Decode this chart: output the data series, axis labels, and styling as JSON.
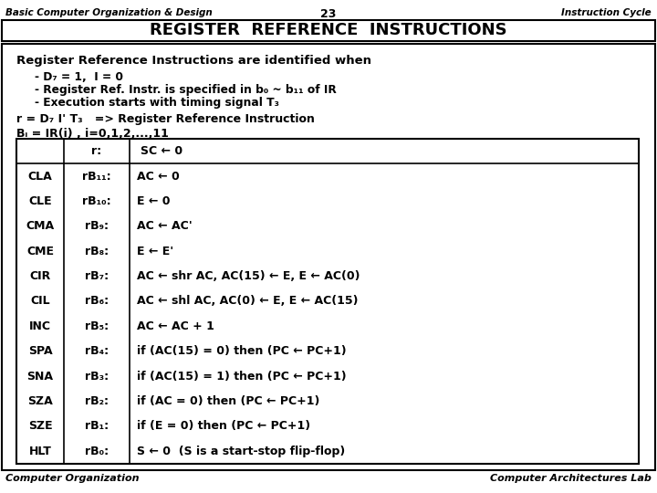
{
  "header_left": "Basic Computer Organization & Design",
  "header_center": "23",
  "header_right": "Instruction Cycle",
  "title": "REGISTER  REFERENCE  INSTRUCTIONS",
  "bg_color": "#ffffff",
  "intro_line": "Register Reference Instructions are identified when",
  "bullets": [
    "D₇ = 1,  I = 0",
    "Register Ref. Instr. is specified in b₀ ~ b₁₁ of IR",
    "Execution starts with timing signal T₃"
  ],
  "formula_line1": "r = D₇ I' T₃   => Register Reference Instruction",
  "formula_line2": "Bᵢ = IR(i) , i=0,1,2,...,11",
  "table_col1_header": "",
  "table_col2_header": "r:",
  "table_col3_header": "SC ← 0",
  "table_col1": [
    "CLA",
    "CLE",
    "CMA",
    "CME",
    "CIR",
    "CIL",
    "INC",
    "SPA",
    "SNA",
    "SZA",
    "SZE",
    "HLT"
  ],
  "table_col2": [
    "rB₁₁:",
    "rB₁₀:",
    "rB₉:",
    "rB₈:",
    "rB₇:",
    "rB₆:",
    "rB₅:",
    "rB₄:",
    "rB₃:",
    "rB₂:",
    "rB₁:",
    "rB₀:"
  ],
  "table_col3": [
    "AC ← 0",
    "E ← 0",
    "AC ← AC'",
    "E ← E'",
    "AC ← shr AC, AC(15) ← E, E ← AC(0)",
    "AC ← shl AC, AC(0) ← E, E ← AC(15)",
    "AC ← AC + 1",
    "if (AC(15) = 0) then (PC ← PC+1)",
    "if (AC(15) = 1) then (PC ← PC+1)",
    "if (AC = 0) then (PC ← PC+1)",
    "if (E = 0) then (PC ← PC+1)",
    "S ← 0  (S is a start-stop flip-flop)"
  ],
  "footer_left": "Computer Organization",
  "footer_right": "Computer Architectures Lab"
}
